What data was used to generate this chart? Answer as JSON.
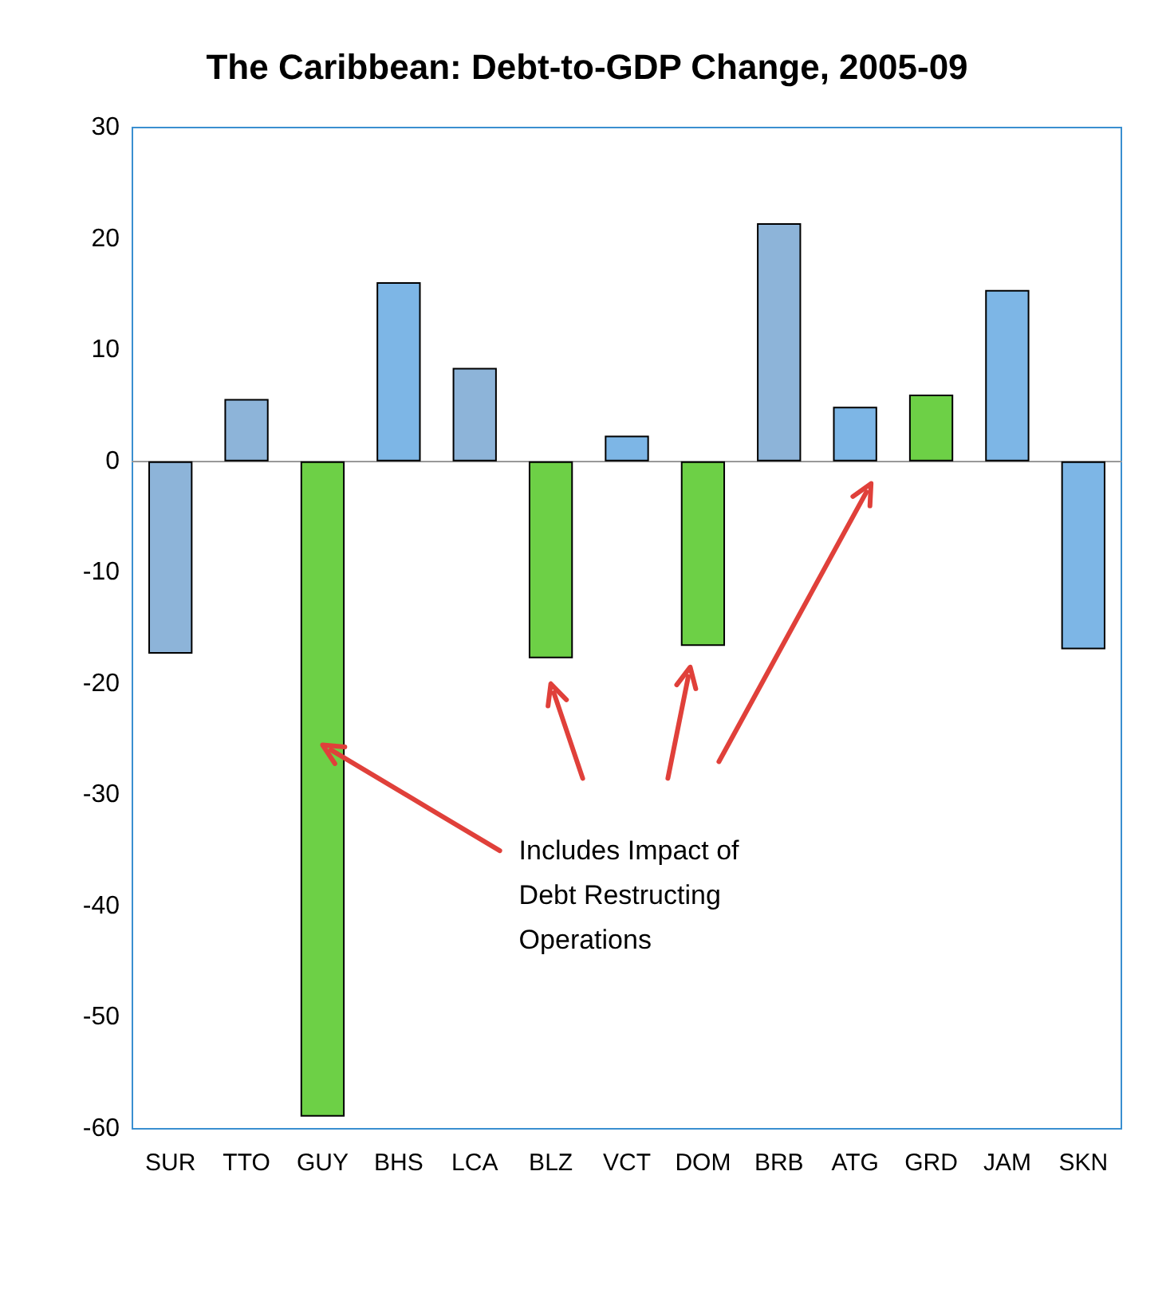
{
  "chart_data": {
    "type": "bar",
    "title": "The Caribbean: Debt-to-GDP Change, 2005-09",
    "categories": [
      "SUR",
      "TTO",
      "GUY",
      "BHS",
      "LCA",
      "BLZ",
      "VCT",
      "DOM",
      "BRB",
      "ATG",
      "GRD",
      "JAM",
      "SKN"
    ],
    "values": [
      -17.3,
      5.6,
      -58.9,
      16.1,
      8.4,
      -17.7,
      2.3,
      -16.6,
      21.4,
      4.9,
      6.0,
      15.4,
      -16.9
    ],
    "colors": [
      "#8db4d9",
      "#8db4d9",
      "#6dd046",
      "#7db6e6",
      "#8db4d9",
      "#6dd046",
      "#7db6e6",
      "#6dd046",
      "#8db4d9",
      "#7db6e6",
      "#6dd046",
      "#7db6e6",
      "#7db6e6"
    ],
    "ylim": [
      -60,
      30
    ],
    "yticks": [
      -60,
      -50,
      -40,
      -30,
      -20,
      -10,
      0,
      10,
      20,
      30
    ],
    "annotations": [
      "Includes Impact of\nDebt Restructing\nOperations"
    ]
  }
}
